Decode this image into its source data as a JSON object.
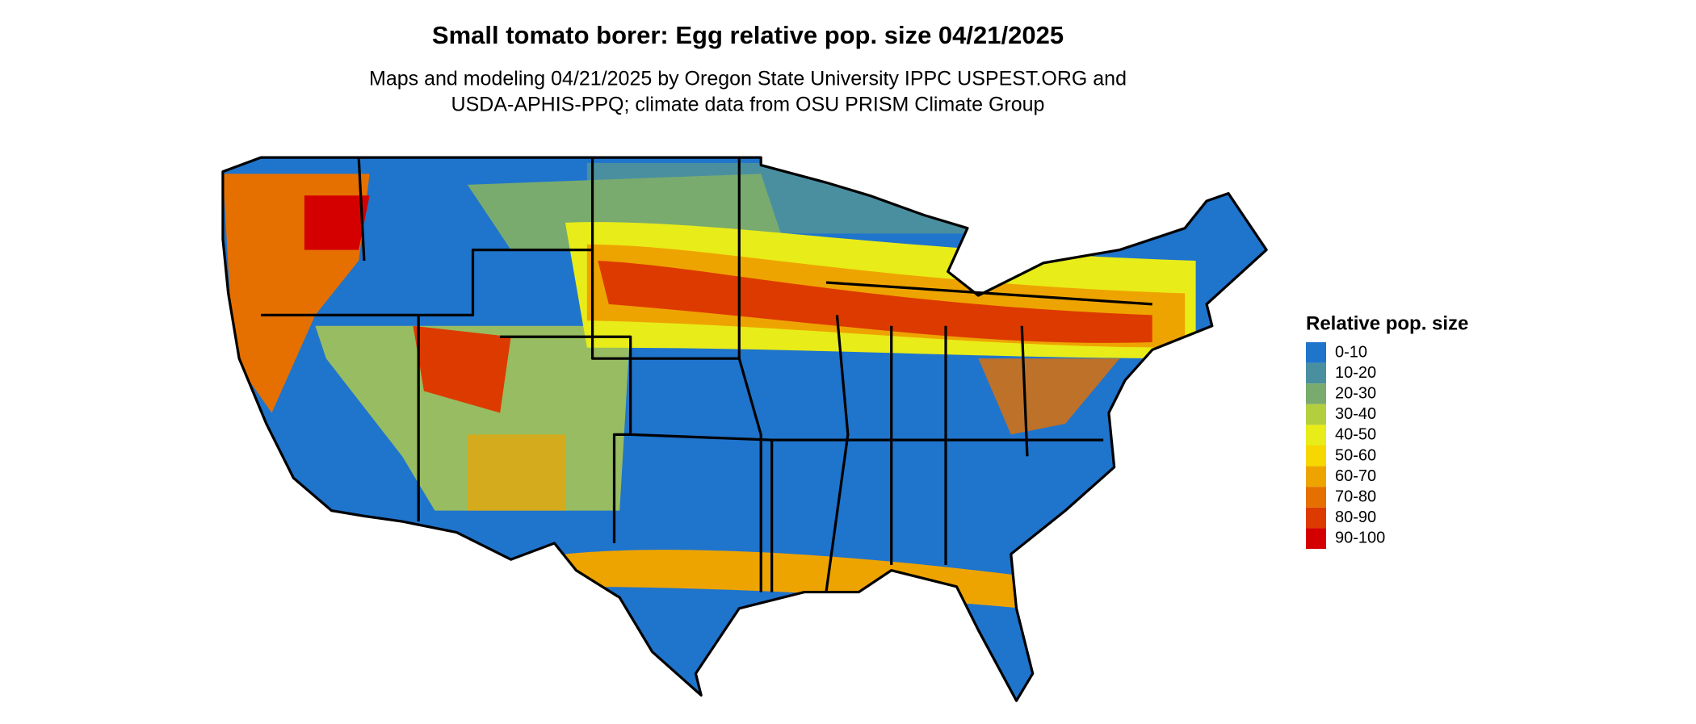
{
  "title": "Small tomato borer: Egg relative pop. size 04/21/2025",
  "subtitle": [
    "Maps and modeling 04/21/2025 by Oregon State University IPPC USPEST.ORG and",
    "USDA-APHIS-PPQ; climate data from OSU PRISM Climate Group"
  ],
  "legend": {
    "title": "Relative pop. size",
    "items": [
      {
        "label": "0-10",
        "color": "#1f74cc"
      },
      {
        "label": "10-20",
        "color": "#4a8fa0"
      },
      {
        "label": "20-30",
        "color": "#7aab6e"
      },
      {
        "label": "30-40",
        "color": "#b3cf3d"
      },
      {
        "label": "40-50",
        "color": "#e8ec19"
      },
      {
        "label": "50-60",
        "color": "#f6d700"
      },
      {
        "label": "60-70",
        "color": "#eea400"
      },
      {
        "label": "70-80",
        "color": "#e57000"
      },
      {
        "label": "80-90",
        "color": "#dd3a00"
      },
      {
        "label": "90-100",
        "color": "#d40000"
      }
    ]
  }
}
